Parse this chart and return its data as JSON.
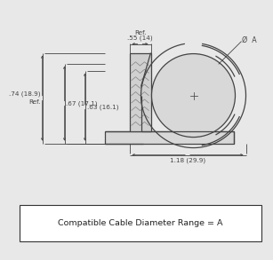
{
  "bg_color": "#e8e8e8",
  "line_color": "#444444",
  "dim_color": "#444444",
  "title": "Compatible Cable Diameter Range = A",
  "dim_055": ".55 (14)",
  "dim_ref_top": "Ref.",
  "dim_074": ".74 (18.9)",
  "dim_ref_left": "Ref.",
  "dim_067": ".67 (17.1)",
  "dim_063": ".63 (16.1)",
  "dim_118": "1.18 (29.9)",
  "dim_dia": "Ø  A"
}
